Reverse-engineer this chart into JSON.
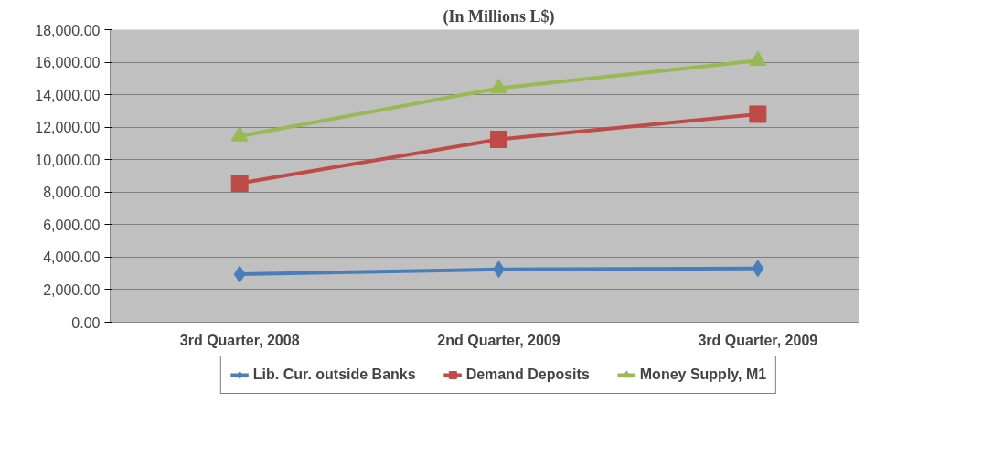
{
  "chart_data": {
    "type": "line",
    "title": "(In Millions L$)",
    "categories": [
      "3rd Quarter, 2008",
      "2nd Quarter, 2009",
      "3rd Quarter, 2009"
    ],
    "series": [
      {
        "name": "Lib. Cur. outside Banks",
        "color": "#4a7ebb",
        "marker": "diamond",
        "values": [
          2950,
          3250,
          3300
        ]
      },
      {
        "name": "Demand Deposits",
        "color": "#be4b48",
        "marker": "square",
        "values": [
          8550,
          11250,
          12800
        ]
      },
      {
        "name": "Money Supply, M1",
        "color": "#98b954",
        "marker": "triangle",
        "values": [
          11450,
          14400,
          16100
        ]
      }
    ],
    "ylim": [
      0,
      18000
    ],
    "yticks": [
      {
        "value": 0,
        "label": "0.00"
      },
      {
        "value": 2000,
        "label": "2,000.00"
      },
      {
        "value": 4000,
        "label": "4,000.00"
      },
      {
        "value": 6000,
        "label": "6,000.00"
      },
      {
        "value": 8000,
        "label": "8,000.00"
      },
      {
        "value": 10000,
        "label": "10,000.00"
      },
      {
        "value": 12000,
        "label": "12,000.00"
      },
      {
        "value": 14000,
        "label": "14,000.00"
      },
      {
        "value": 16000,
        "label": "16,000.00"
      },
      {
        "value": 18000,
        "label": "18,000.00"
      }
    ],
    "grid": "y",
    "legend": "bottom",
    "line_style": "solid"
  }
}
